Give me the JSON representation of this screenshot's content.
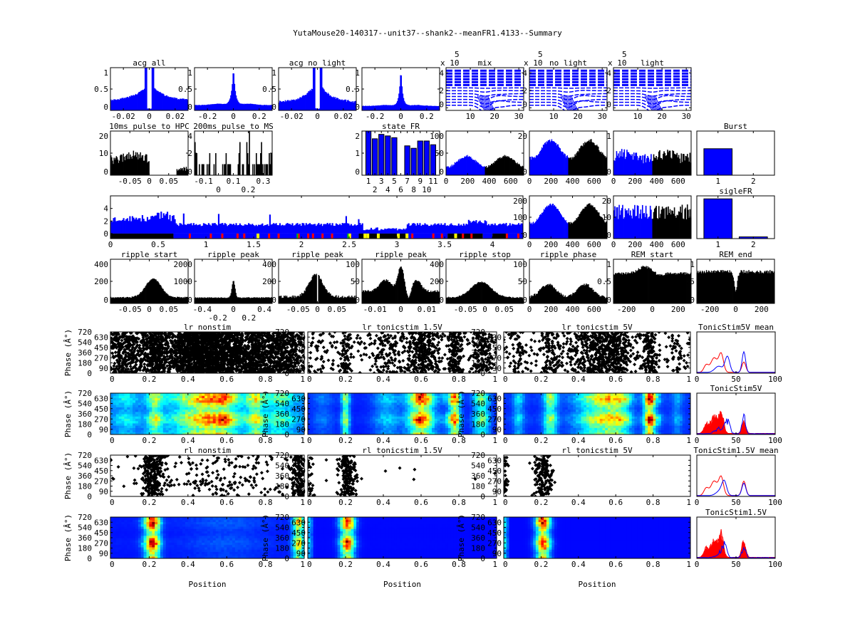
{
  "title": "YutaMouse20-140317--unit37--shank2--meanFR1.4133--Summary",
  "chart_data": {
    "type": "figure-grid",
    "colors": {
      "blue": "#0000ff",
      "black": "#000000",
      "red": "#ff0000",
      "yellow": "#ffff00",
      "green": "#00c000"
    },
    "panels": [
      {
        "id": "acg_all",
        "type": "bar",
        "title": "acg all",
        "xlim": [
          -0.03,
          0.03
        ],
        "xticks": [
          -0.02,
          0,
          0.02
        ],
        "ylim": [
          0,
          1
        ],
        "yticks": [
          0,
          0.5,
          1
        ]
      },
      {
        "id": "acg_all_wide",
        "type": "bar",
        "title": "",
        "xlim": [
          -0.3,
          0.3
        ],
        "xticks": [
          -0.2,
          0,
          0.2
        ],
        "ylim": [
          0,
          1
        ],
        "yticks": [
          0,
          0.5,
          1
        ]
      },
      {
        "id": "acg_nolight",
        "type": "bar",
        "title": "acg no light",
        "xlim": [
          -0.03,
          0.03
        ],
        "xticks": [
          -0.02,
          0,
          0.02
        ],
        "ylim": [
          0,
          1
        ],
        "yticks": [
          0,
          0.5,
          1
        ]
      },
      {
        "id": "acg_nolight_wide",
        "type": "bar",
        "title": "",
        "xlim": [
          -0.3,
          0.3
        ],
        "xticks": [
          -0.2,
          0,
          0.2
        ],
        "ylim": [
          0,
          1
        ],
        "yticks": [
          0,
          0.5,
          1
        ]
      },
      {
        "id": "wave_mix",
        "type": "line",
        "title": "mix",
        "exp_base": "x 10",
        "exponent": "5",
        "xlim": [
          0,
          32
        ],
        "xticks": [
          10,
          20,
          30
        ],
        "ylim": [
          -0.3,
          4.6
        ],
        "yticks": [
          0,
          2,
          4
        ]
      },
      {
        "id": "wave_nolight",
        "type": "line",
        "title": "no light",
        "exp_base": "x 10",
        "exponent": "5",
        "xlim": [
          0,
          32
        ],
        "xticks": [
          10,
          20,
          30
        ],
        "ylim": [
          -0.3,
          4.6
        ],
        "yticks": [
          0,
          2,
          4
        ]
      },
      {
        "id": "wave_light",
        "type": "line",
        "title": "light",
        "exp_base": "x 10",
        "exponent": "5",
        "xlim": [
          0,
          32
        ],
        "xticks": [
          10,
          20,
          30
        ],
        "ylim": [
          -0.3,
          4.6
        ],
        "yticks": [
          0,
          2,
          4
        ]
      },
      {
        "id": "pulse_hpc",
        "type": "bar",
        "title": "10ms pulse to HPC",
        "xlim": [
          -0.1,
          0.1
        ],
        "xticks": [
          -0.05,
          0,
          0.05
        ],
        "ylim": [
          0,
          20
        ],
        "yticks": [
          0,
          10,
          20
        ]
      },
      {
        "id": "pulse_ms",
        "type": "bar",
        "title": "200ms pulse to MS",
        "xlim": [
          -0.16,
          0.36
        ],
        "xticks": [
          -0.1,
          0,
          0.1,
          0.2,
          0.3
        ],
        "ylim": [
          0,
          4
        ],
        "yticks": [
          0,
          2,
          4
        ]
      },
      {
        "id": "state_fr",
        "type": "bar",
        "title": "state FR",
        "xlim": [
          0,
          12
        ],
        "xticks": [
          1,
          2,
          3,
          4,
          5,
          6,
          7,
          8,
          9,
          10,
          11
        ],
        "ylim": [
          0,
          2
        ],
        "yticks": [
          0,
          1,
          2
        ],
        "values": [
          2.0,
          1.65,
          1.85,
          1.78,
          1.7,
          0,
          1.33,
          1.22,
          1.55,
          1.55,
          1.38
        ]
      },
      {
        "id": "phase_mix",
        "type": "bar",
        "title": "",
        "xlim": [
          0,
          720
        ],
        "xticks": [
          0,
          200,
          400,
          600
        ],
        "ylim": [
          0,
          100
        ],
        "yticks": [
          0,
          50,
          100
        ]
      },
      {
        "id": "phase_nolight",
        "type": "bar",
        "title": "",
        "xlim": [
          0,
          720
        ],
        "xticks": [
          0,
          200,
          400,
          600
        ],
        "ylim": [
          0,
          20
        ],
        "yticks": [
          0,
          20
        ]
      },
      {
        "id": "phase_light",
        "type": "bar",
        "title": "",
        "xlim": [
          0,
          720
        ],
        "xticks": [
          0,
          200,
          400,
          600
        ],
        "ylim": [
          0,
          1
        ],
        "yticks": [
          0,
          1
        ]
      },
      {
        "id": "burst",
        "type": "bar",
        "title": "Burst",
        "xlim": [
          0.4,
          2.6
        ],
        "xticks": [
          1,
          2
        ],
        "ylim": [
          0,
          1
        ],
        "yticks": [],
        "values": [
          0.6,
          0
        ]
      },
      {
        "id": "timeline",
        "type": "bar",
        "title": "",
        "xlim": [
          0,
          4.32
        ],
        "xticks": [
          0,
          0.5,
          1,
          1.5,
          2,
          2.5,
          3,
          3.5,
          4
        ],
        "ylim": [
          -0.8,
          6
        ],
        "yticks": [
          0,
          2,
          4
        ],
        "state_strip": [
          {
            "from": 0,
            "to": 0.66,
            "state": "black"
          },
          {
            "from": 0.66,
            "to": 2.6,
            "state": "blue"
          },
          {
            "from": 2.6,
            "to": 3.12,
            "state": "black"
          },
          {
            "from": 3.12,
            "to": 3.53,
            "state": "blue"
          },
          {
            "from": 3.53,
            "to": 3.9,
            "state": "black"
          },
          {
            "from": 3.9,
            "to": 4.0,
            "state": "blue"
          },
          {
            "from": 4.0,
            "to": 4.15,
            "state": "black"
          },
          {
            "from": 4.15,
            "to": 4.32,
            "state": "blue"
          }
        ],
        "red_marks": [
          0.82,
          1.04,
          1.16,
          1.32,
          1.39,
          1.65,
          1.75,
          1.96,
          2.06,
          2.11,
          2.21,
          2.31,
          2.5,
          3.15,
          3.37,
          3.46,
          3.68,
          3.77,
          4.14,
          4.26
        ],
        "yellow_marks": [
          1.53,
          2.49,
          2.65,
          2.68,
          2.79,
          3.0,
          3.09,
          3.6
        ],
        "green_marks": [
          1.95,
          2.48
        ]
      },
      {
        "id": "phase2_nolight",
        "type": "bar",
        "title": "",
        "xlim": [
          0,
          720
        ],
        "xticks": [
          0,
          200,
          400,
          600
        ],
        "ylim": [
          0,
          200
        ],
        "yticks": [
          0,
          100,
          200
        ]
      },
      {
        "id": "phase2_light",
        "type": "bar",
        "title": "",
        "xlim": [
          0,
          720
        ],
        "xticks": [
          0,
          200,
          400,
          600
        ],
        "ylim": [
          0,
          20
        ],
        "yticks": [
          0,
          10,
          20
        ]
      },
      {
        "id": "siglefr",
        "type": "bar",
        "title": "sigleFR",
        "xlim": [
          0.4,
          2.6
        ],
        "xticks": [
          1,
          2
        ],
        "ylim": [
          0,
          1
        ],
        "yticks": [],
        "values": [
          0.93,
          0.04
        ]
      },
      {
        "id": "ripple_start",
        "type": "bar",
        "title": "ripple start",
        "xlim": [
          -0.1,
          0.1
        ],
        "xticks": [
          -0.05,
          0,
          0.05
        ],
        "ylim": [
          0,
          400
        ],
        "yticks": [
          0,
          200,
          400
        ]
      },
      {
        "id": "ripple_peak_wide",
        "type": "bar",
        "title": "ripple peak",
        "xlim": [
          -0.5,
          0.5
        ],
        "xticks": [
          -0.4,
          -0.2,
          0,
          0.2,
          0.4
        ],
        "ylim": [
          0,
          2000
        ],
        "yticks": [
          0,
          1000,
          2000
        ]
      },
      {
        "id": "ripple_peak",
        "type": "bar",
        "title": "ripple peak",
        "xlim": [
          -0.1,
          0.1
        ],
        "xticks": [
          -0.05,
          0,
          0.05
        ],
        "ylim": [
          0,
          400
        ],
        "yticks": [
          0,
          200,
          400
        ]
      },
      {
        "id": "ripple_peak_narrow",
        "type": "bar",
        "title": "ripple peak",
        "xlim": [
          -0.015,
          0.015
        ],
        "xticks": [
          -0.01,
          0,
          0.01
        ],
        "ylim": [
          0,
          100
        ],
        "yticks": [
          0,
          50,
          100
        ]
      },
      {
        "id": "ripple_stop",
        "type": "bar",
        "title": "ripple stop",
        "xlim": [
          -0.1,
          0.1
        ],
        "xticks": [
          -0.05,
          0,
          0.05
        ],
        "ylim": [
          0,
          400
        ],
        "yticks": [
          0,
          200,
          400
        ]
      },
      {
        "id": "ripple_phase",
        "type": "bar",
        "title": "ripple phase",
        "xlim": [
          0,
          720
        ],
        "xticks": [
          0,
          200,
          400,
          600
        ],
        "ylim": [
          0,
          100
        ],
        "yticks": [
          0,
          50,
          100
        ]
      },
      {
        "id": "rem_start",
        "type": "bar",
        "title": "REM start",
        "xlim": [
          -300,
          300
        ],
        "xticks": [
          -200,
          0,
          200
        ],
        "ylim": [
          0,
          1
        ],
        "yticks": [
          0,
          0.5,
          1
        ]
      },
      {
        "id": "rem_end",
        "type": "bar",
        "title": "REM end",
        "xlim": [
          -300,
          300
        ],
        "xticks": [
          -200,
          0,
          200
        ],
        "ylim": [
          0,
          1
        ],
        "yticks": [
          0,
          0.5,
          1
        ]
      },
      {
        "id": "lr_nonstim",
        "type": "scatter",
        "title": "lr nonstim",
        "ylabel": "Phase (Â°)",
        "xlim": [
          0,
          1
        ],
        "xticks": [
          0,
          0.2,
          0.4,
          0.6,
          0.8,
          1
        ],
        "ylim": [
          0,
          720
        ],
        "yticks": [
          0,
          90,
          180,
          270,
          360,
          450,
          540,
          630,
          720
        ]
      },
      {
        "id": "lr_tonic15",
        "type": "scatter",
        "title": "lr tonicstim 1.5V",
        "xlim": [
          0,
          1
        ],
        "xticks": [
          0,
          0.2,
          0.4,
          0.6,
          0.8,
          1
        ],
        "ylim": [
          0,
          720
        ],
        "yticks": [
          0,
          90,
          180,
          270,
          360,
          450,
          540,
          630,
          720
        ]
      },
      {
        "id": "lr_tonic5",
        "type": "scatter",
        "title": "lr tonicstim 5V",
        "xlim": [
          0,
          1
        ],
        "xticks": [
          0,
          0.2,
          0.4,
          0.6,
          0.8,
          1
        ],
        "ylim": [
          0,
          720
        ],
        "yticks": [
          0,
          90,
          180,
          270,
          360,
          450,
          540,
          630,
          720
        ]
      },
      {
        "id": "mean_5v",
        "type": "line",
        "title": "TonicStim5V mean",
        "xlim": [
          0,
          100
        ],
        "xticks": [
          0,
          50,
          100
        ],
        "ylim": [
          0,
          1
        ],
        "yticks": []
      },
      {
        "id": "lr_nonstim_heat",
        "type": "heatmap",
        "title": "",
        "ylabel": "Phase (Â°)",
        "xlim": [
          0,
          1
        ],
        "xticks": [
          0,
          0.2,
          0.4,
          0.6,
          0.8,
          1
        ],
        "ylim": [
          0,
          720
        ],
        "yticks": [
          0,
          90,
          180,
          270,
          360,
          450,
          540,
          630,
          720
        ]
      },
      {
        "id": "lr_tonic15_heat",
        "type": "heatmap",
        "title": "",
        "ylabel": "Phase (Â°)",
        "xlim": [
          0,
          1
        ],
        "xticks": [
          0,
          0.2,
          0.4,
          0.6,
          0.8,
          1
        ],
        "ylim": [
          0,
          720
        ],
        "yticks": [
          0,
          90,
          180,
          270,
          360,
          450,
          540,
          630,
          720
        ]
      },
      {
        "id": "lr_tonic5_heat",
        "type": "heatmap",
        "title": "",
        "ylabel": "Phase (Â°)",
        "xlim": [
          0,
          1
        ],
        "xticks": [
          0,
          0.2,
          0.4,
          0.6,
          0.8,
          1
        ],
        "ylim": [
          0,
          720
        ],
        "yticks": [
          0,
          90,
          180,
          270,
          360,
          450,
          540,
          630,
          720
        ]
      },
      {
        "id": "all_5v",
        "type": "line",
        "title": "TonicStim5V",
        "xlim": [
          0,
          100
        ],
        "xticks": [
          0,
          50,
          100
        ],
        "ylim": [
          0,
          1
        ],
        "yticks": []
      },
      {
        "id": "rl_nonstim",
        "type": "scatter",
        "title": "rl nonstim",
        "ylabel": "Phase (Â°)",
        "xlim": [
          0,
          1
        ],
        "xticks": [
          0,
          0.2,
          0.4,
          0.6,
          0.8,
          1
        ],
        "ylim": [
          0,
          720
        ],
        "yticks": [
          0,
          90,
          180,
          270,
          360,
          450,
          540,
          630,
          720
        ]
      },
      {
        "id": "rl_tonic15",
        "type": "scatter",
        "title": "rl tonicstim 1.5V",
        "xlim": [
          0,
          1
        ],
        "xticks": [
          0,
          0.2,
          0.4,
          0.6,
          0.8,
          1
        ],
        "ylim": [
          0,
          720
        ],
        "yticks": [
          0,
          90,
          180,
          270,
          360,
          450,
          540,
          630,
          720
        ]
      },
      {
        "id": "rl_tonic5",
        "type": "scatter",
        "title": "rl tonicstim 5V",
        "xlim": [
          0,
          1
        ],
        "xticks": [
          0,
          0.2,
          0.4,
          0.6,
          0.8,
          1
        ],
        "ylim": [
          0,
          720
        ],
        "yticks": [
          0,
          90,
          180,
          270,
          360,
          450,
          540,
          630,
          720
        ]
      },
      {
        "id": "mean_15v",
        "type": "line",
        "title": "TonicStim1.5V mean",
        "xlim": [
          0,
          100
        ],
        "xticks": [
          0,
          50,
          100
        ],
        "ylim": [
          0,
          1
        ],
        "yticks": []
      },
      {
        "id": "rl_nonstim_heat",
        "type": "heatmap",
        "title": "",
        "ylabel": "Phase (Â°)",
        "xlabel": "Position",
        "xlim": [
          0,
          1
        ],
        "xticks": [
          0,
          0.2,
          0.4,
          0.6,
          0.8,
          1
        ],
        "ylim": [
          0,
          720
        ],
        "yticks": [
          0,
          90,
          180,
          270,
          360,
          450,
          540,
          630,
          720
        ]
      },
      {
        "id": "rl_tonic15_heat",
        "type": "heatmap",
        "title": "",
        "ylabel": "Phase (Â°)",
        "xlabel": "Position",
        "xlim": [
          0,
          1
        ],
        "xticks": [
          0,
          0.2,
          0.4,
          0.6,
          0.8,
          1
        ],
        "ylim": [
          0,
          720
        ],
        "yticks": [
          0,
          90,
          180,
          270,
          360,
          450,
          540,
          630,
          720
        ]
      },
      {
        "id": "rl_tonic5_heat",
        "type": "heatmap",
        "title": "",
        "ylabel": "Phase (Â°)",
        "xlabel": "Position",
        "xlim": [
          0,
          1
        ],
        "xticks": [
          0,
          0.2,
          0.4,
          0.6,
          0.8,
          1
        ],
        "ylim": [
          0,
          720
        ],
        "yticks": [
          0,
          90,
          180,
          270,
          360,
          450,
          540,
          630,
          720
        ]
      },
      {
        "id": "all_15v",
        "type": "line",
        "title": "TonicStim1.5V",
        "xlim": [
          0,
          100
        ],
        "xticks": [
          0,
          50,
          100
        ],
        "ylim": [
          0,
          1
        ],
        "yticks": []
      }
    ]
  }
}
